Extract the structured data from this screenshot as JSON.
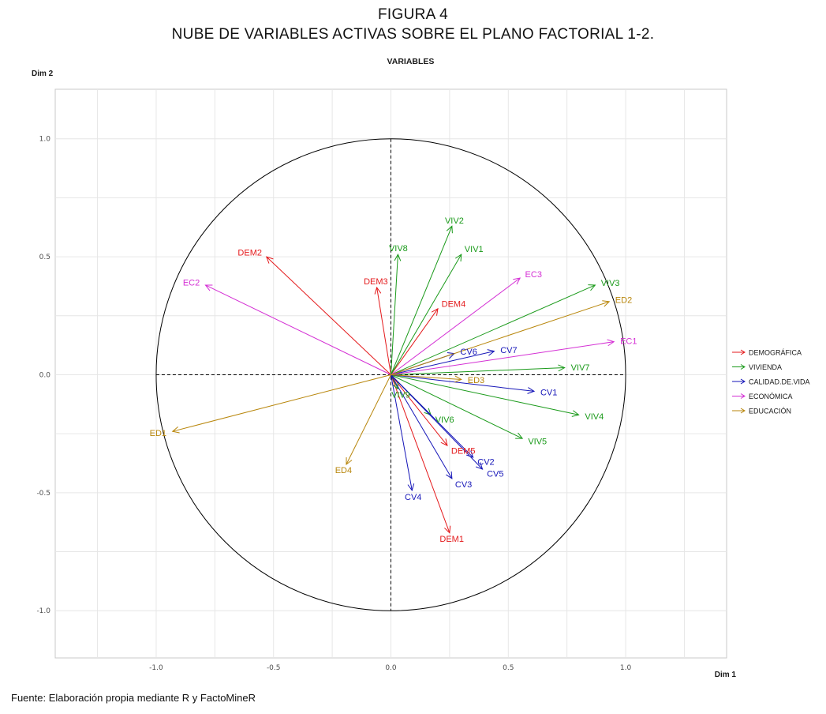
{
  "figure": {
    "label": "FIGURA 4",
    "title": "NUBE DE VARIABLES ACTIVAS SOBRE EL PLANO FACTORIAL 1-2.",
    "source": "Fuente: Elaboración propia mediante R y FactoMineR"
  },
  "chart_data": {
    "type": "scatter",
    "subtype": "PCA correlation circle (variable arrows from origin)",
    "title": "VARIABLES",
    "xlabel": "Dim 1",
    "ylabel": "Dim 2",
    "xlim": [
      -1.43,
      1.43
    ],
    "ylim": [
      -1.2,
      1.21
    ],
    "xticks": [
      "-1.0",
      "-0.5",
      "0.0",
      "0.5",
      "1.0"
    ],
    "yticks": [
      "-1.0",
      "-0.5",
      "0.0",
      "0.5",
      "1.0"
    ],
    "grid": true,
    "unit_circle": true,
    "legend_position": "right",
    "colors": {
      "DEMOGRÁFICA": "#e41a1c",
      "VIVIENDA": "#1a9a1a",
      "CALIDAD.DE.VIDA": "#1616b8",
      "ECONÓMICA": "#d42fd4",
      "EDUCACIÓN": "#b8860b"
    },
    "series": [
      {
        "name": "DEMOGRÁFICA",
        "points": [
          {
            "label": "DEM1",
            "x": 0.25,
            "y": -0.67
          },
          {
            "label": "DEM2",
            "x": -0.53,
            "y": 0.5
          },
          {
            "label": "DEM3",
            "x": -0.06,
            "y": 0.37
          },
          {
            "label": "DEM4",
            "x": 0.2,
            "y": 0.28
          },
          {
            "label": "DEM5",
            "x": 0.24,
            "y": -0.3
          }
        ]
      },
      {
        "name": "VIVIENDA",
        "points": [
          {
            "label": "VIV2",
            "x": 0.26,
            "y": 0.63
          },
          {
            "label": "VIV1",
            "x": 0.3,
            "y": 0.51
          },
          {
            "label": "VIV8",
            "x": 0.03,
            "y": 0.51
          },
          {
            "label": "VIV3",
            "x": 0.87,
            "y": 0.38
          },
          {
            "label": "VIV7",
            "x": 0.74,
            "y": 0.03
          },
          {
            "label": "VIV4",
            "x": 0.8,
            "y": -0.17
          },
          {
            "label": "VIV5",
            "x": 0.56,
            "y": -0.27
          },
          {
            "label": "VIV6",
            "x": 0.17,
            "y": -0.17
          },
          {
            "label": "VIV9",
            "x": 0.03,
            "y": -0.06
          }
        ]
      },
      {
        "name": "CALIDAD.DE.VIDA",
        "points": [
          {
            "label": "CV1",
            "x": 0.61,
            "y": -0.07
          },
          {
            "label": "CV2",
            "x": 0.35,
            "y": -0.35
          },
          {
            "label": "CV3",
            "x": 0.26,
            "y": -0.44
          },
          {
            "label": "CV4",
            "x": 0.09,
            "y": -0.49
          },
          {
            "label": "CV5",
            "x": 0.39,
            "y": -0.4
          },
          {
            "label": "CV6",
            "x": 0.27,
            "y": 0.09
          },
          {
            "label": "CV7",
            "x": 0.44,
            "y": 0.1
          }
        ]
      },
      {
        "name": "ECONÓMICA",
        "points": [
          {
            "label": "EC1",
            "x": 0.95,
            "y": 0.14
          },
          {
            "label": "EC2",
            "x": -0.79,
            "y": 0.38
          },
          {
            "label": "EC3",
            "x": 0.55,
            "y": 0.41
          }
        ]
      },
      {
        "name": "EDUCACIÓN",
        "points": [
          {
            "label": "ED1",
            "x": -0.93,
            "y": -0.24
          },
          {
            "label": "ED2",
            "x": 0.93,
            "y": 0.31
          },
          {
            "label": "ED3",
            "x": 0.3,
            "y": -0.02
          },
          {
            "label": "ED4",
            "x": -0.19,
            "y": -0.38
          }
        ]
      }
    ]
  }
}
